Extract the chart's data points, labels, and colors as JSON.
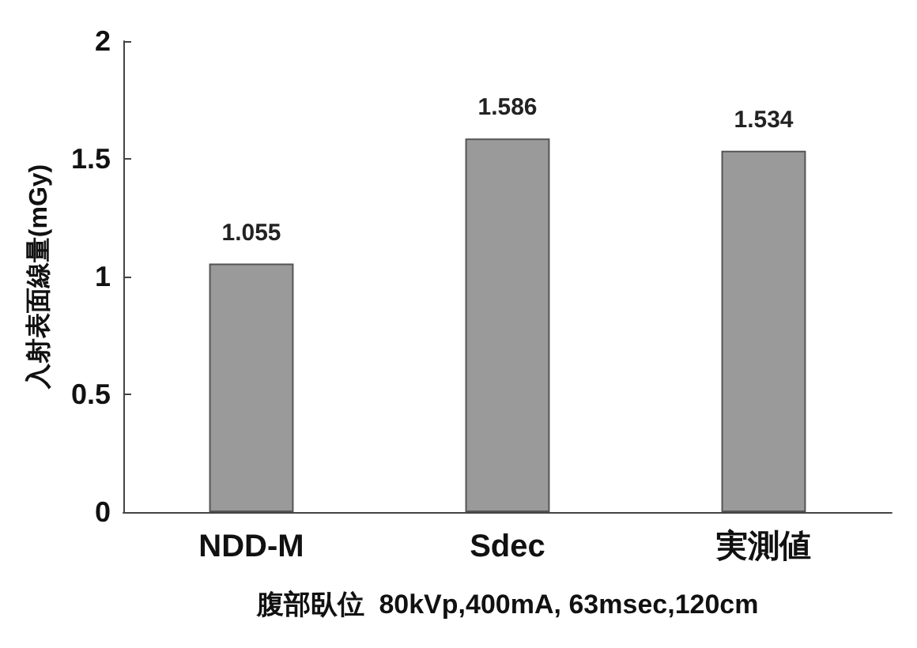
{
  "chart_data": {
    "type": "bar",
    "categories": [
      "NDD-M",
      "Sdec",
      "実測値"
    ],
    "values": [
      1.055,
      1.586,
      1.534
    ],
    "color": "#9a9a9a",
    "data_labels": true,
    "ylim": [
      0,
      2
    ],
    "yticks": [
      0,
      0.5,
      1,
      1.5,
      2
    ],
    "ylabel": "入射表面線量(mGy)",
    "xlabel": "腹部臥位  80kVp,400mA, 63msec,120cm",
    "grid": false
  }
}
